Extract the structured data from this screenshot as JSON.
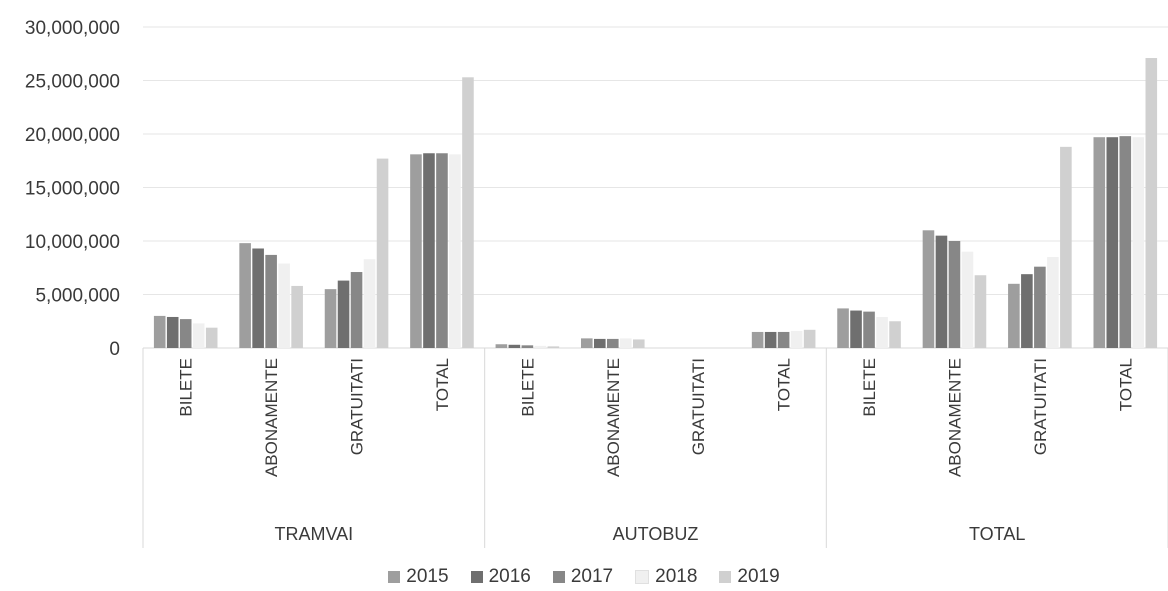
{
  "chart_data": {
    "type": "bar",
    "groups": [
      {
        "label": "TRAMVAI",
        "categories": [
          "BILETE",
          "ABONAMENTE",
          "GRATUITATI",
          "TOTAL"
        ]
      },
      {
        "label": "AUTOBUZ",
        "categories": [
          "BILETE",
          "ABONAMENTE",
          "GRATUITATI",
          "TOTAL"
        ]
      },
      {
        "label": "TOTAL",
        "categories": [
          "BILETE",
          "ABONAMENTE",
          "GRATUITATI",
          "TOTAL"
        ]
      }
    ],
    "series": [
      {
        "name": "2015",
        "color": "#9e9e9e",
        "values": [
          3000000,
          9800000,
          5500000,
          18100000,
          350000,
          900000,
          0,
          1500000,
          3700000,
          11000000,
          6000000,
          19700000
        ]
      },
      {
        "name": "2016",
        "color": "#6f6f6f",
        "values": [
          2900000,
          9300000,
          6300000,
          18200000,
          300000,
          850000,
          0,
          1500000,
          3500000,
          10500000,
          6900000,
          19700000
        ]
      },
      {
        "name": "2017",
        "color": "#878787",
        "values": [
          2700000,
          8700000,
          7100000,
          18200000,
          250000,
          850000,
          0,
          1500000,
          3400000,
          10000000,
          7600000,
          19800000
        ]
      },
      {
        "name": "2018",
        "color": "#f0f0f0",
        "values": [
          2300000,
          7900000,
          8300000,
          18100000,
          200000,
          900000,
          0,
          1600000,
          2900000,
          9000000,
          8500000,
          19700000
        ]
      },
      {
        "name": "2019",
        "color": "#d0d0d0",
        "values": [
          1900000,
          5800000,
          17700000,
          25300000,
          150000,
          800000,
          0,
          1700000,
          2500000,
          6800000,
          18800000,
          27100000
        ]
      }
    ],
    "yticks": [
      "0",
      "5,000,000",
      "10,000,000",
      "15,000,000",
      "20,000,000",
      "25,000,000",
      "30,000,000"
    ],
    "ylim": [
      0,
      30000000
    ],
    "grid": true,
    "legend": "bottom"
  }
}
